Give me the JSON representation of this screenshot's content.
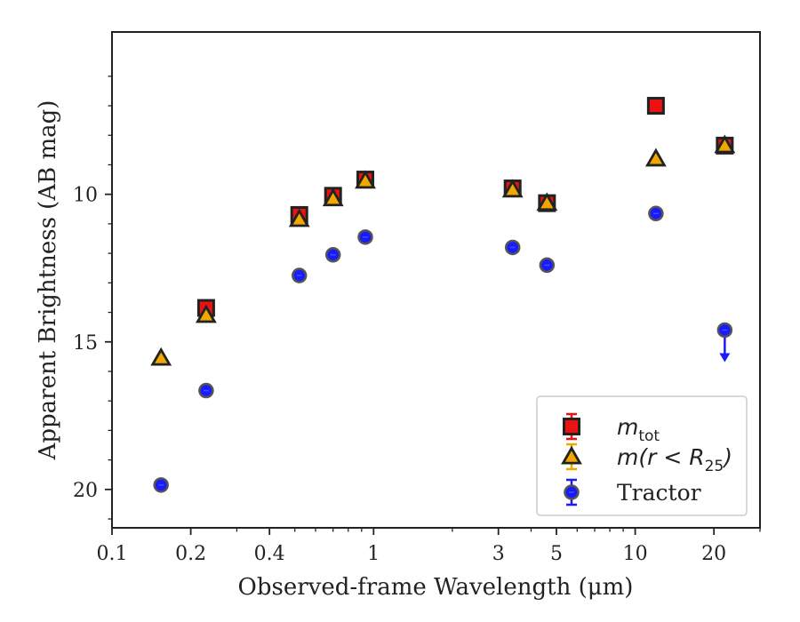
{
  "chart_data": {
    "type": "scatter",
    "xlabel": "Observed-frame Wavelength (μm)",
    "ylabel": "Apparent Brightness (AB mag)",
    "x_scale": "log",
    "y_inverted": true,
    "xlim": [
      0.1,
      30
    ],
    "ylim": [
      21.3,
      4.5
    ],
    "x_ticks": [
      {
        "value": 0.1,
        "label": "0.1"
      },
      {
        "value": 0.2,
        "label": "0.2"
      },
      {
        "value": 0.4,
        "label": "0.4"
      },
      {
        "value": 1,
        "label": "1"
      },
      {
        "value": 3,
        "label": "3"
      },
      {
        "value": 5,
        "label": "5"
      },
      {
        "value": 10,
        "label": "10"
      },
      {
        "value": 20,
        "label": "20"
      }
    ],
    "y_ticks": [
      {
        "value": 10,
        "label": "10"
      },
      {
        "value": 15,
        "label": "15"
      },
      {
        "value": 20,
        "label": "20"
      }
    ],
    "grid": false,
    "legend_position": "lower-right",
    "series": [
      {
        "name_main": "m",
        "name_sub": "tot",
        "marker": "square",
        "color": "#ee1111",
        "points": [
          {
            "x": 0.229,
            "y": 13.85
          },
          {
            "x": 0.52,
            "y": 10.7
          },
          {
            "x": 0.7,
            "y": 10.05
          },
          {
            "x": 0.93,
            "y": 9.5
          },
          {
            "x": 3.4,
            "y": 9.8
          },
          {
            "x": 4.6,
            "y": 10.3
          },
          {
            "x": 12.0,
            "y": 7.0
          },
          {
            "x": 22.0,
            "y": 8.35
          }
        ]
      },
      {
        "name_main": "m(r < R",
        "name_sub": "25",
        "name_end": ")",
        "marker": "triangle",
        "color": "#f0a800",
        "points": [
          {
            "x": 0.154,
            "y": 15.55
          },
          {
            "x": 0.229,
            "y": 14.1
          },
          {
            "x": 0.52,
            "y": 10.85
          },
          {
            "x": 0.7,
            "y": 10.15
          },
          {
            "x": 0.93,
            "y": 9.55
          },
          {
            "x": 3.4,
            "y": 9.85
          },
          {
            "x": 4.6,
            "y": 10.3
          },
          {
            "x": 12.0,
            "y": 8.8
          },
          {
            "x": 22.0,
            "y": 8.35
          }
        ]
      },
      {
        "name": "Tractor",
        "marker": "circle",
        "color": "#1a1aff",
        "points": [
          {
            "x": 0.154,
            "y": 19.85
          },
          {
            "x": 0.229,
            "y": 16.65
          },
          {
            "x": 0.52,
            "y": 12.75
          },
          {
            "x": 0.7,
            "y": 12.05
          },
          {
            "x": 0.93,
            "y": 11.45
          },
          {
            "x": 3.4,
            "y": 11.8
          },
          {
            "x": 4.6,
            "y": 12.4
          },
          {
            "x": 12.0,
            "y": 10.65
          },
          {
            "x": 22.0,
            "y": 14.6,
            "upper_limit_arrow": true
          }
        ]
      }
    ]
  }
}
